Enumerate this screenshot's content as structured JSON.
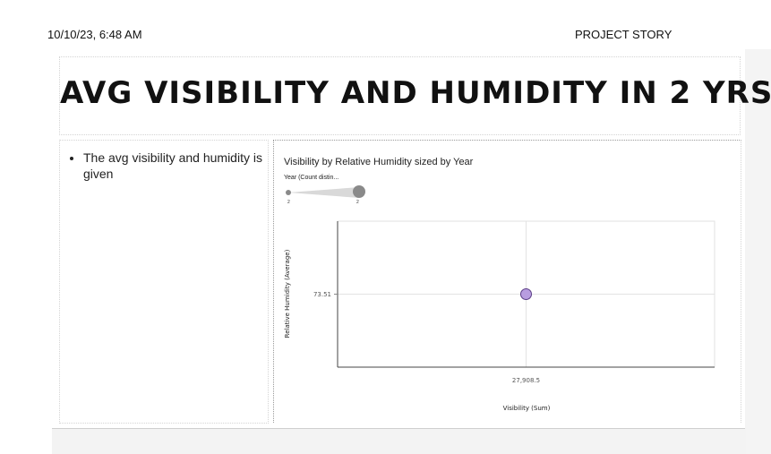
{
  "print_header": {
    "timestamp": "10/10/23, 6:48 AM",
    "page_title": "PROJECT STORY"
  },
  "story": {
    "title": "AVG VISIBILITY AND HUMIDITY IN 2 YRS",
    "bullets": [
      "The avg visibility and humidity is given"
    ]
  },
  "visualization": {
    "title": "Visibility by Relative Humidity sized by Year",
    "size_legend": {
      "title": "Year (Count distin...",
      "min_label": "2",
      "max_label": "2"
    }
  },
  "chart_data": {
    "type": "scatter",
    "xlabel": "Visibility (Sum)",
    "ylabel": "Relative Humidity (Average)",
    "x_tick_labels": [
      "27,908.5"
    ],
    "y_tick_labels": [
      "73.51"
    ],
    "grid": true,
    "points": [
      {
        "x": 27908.5,
        "y": 73.51,
        "size": 2,
        "color": "#b89de0"
      }
    ]
  }
}
